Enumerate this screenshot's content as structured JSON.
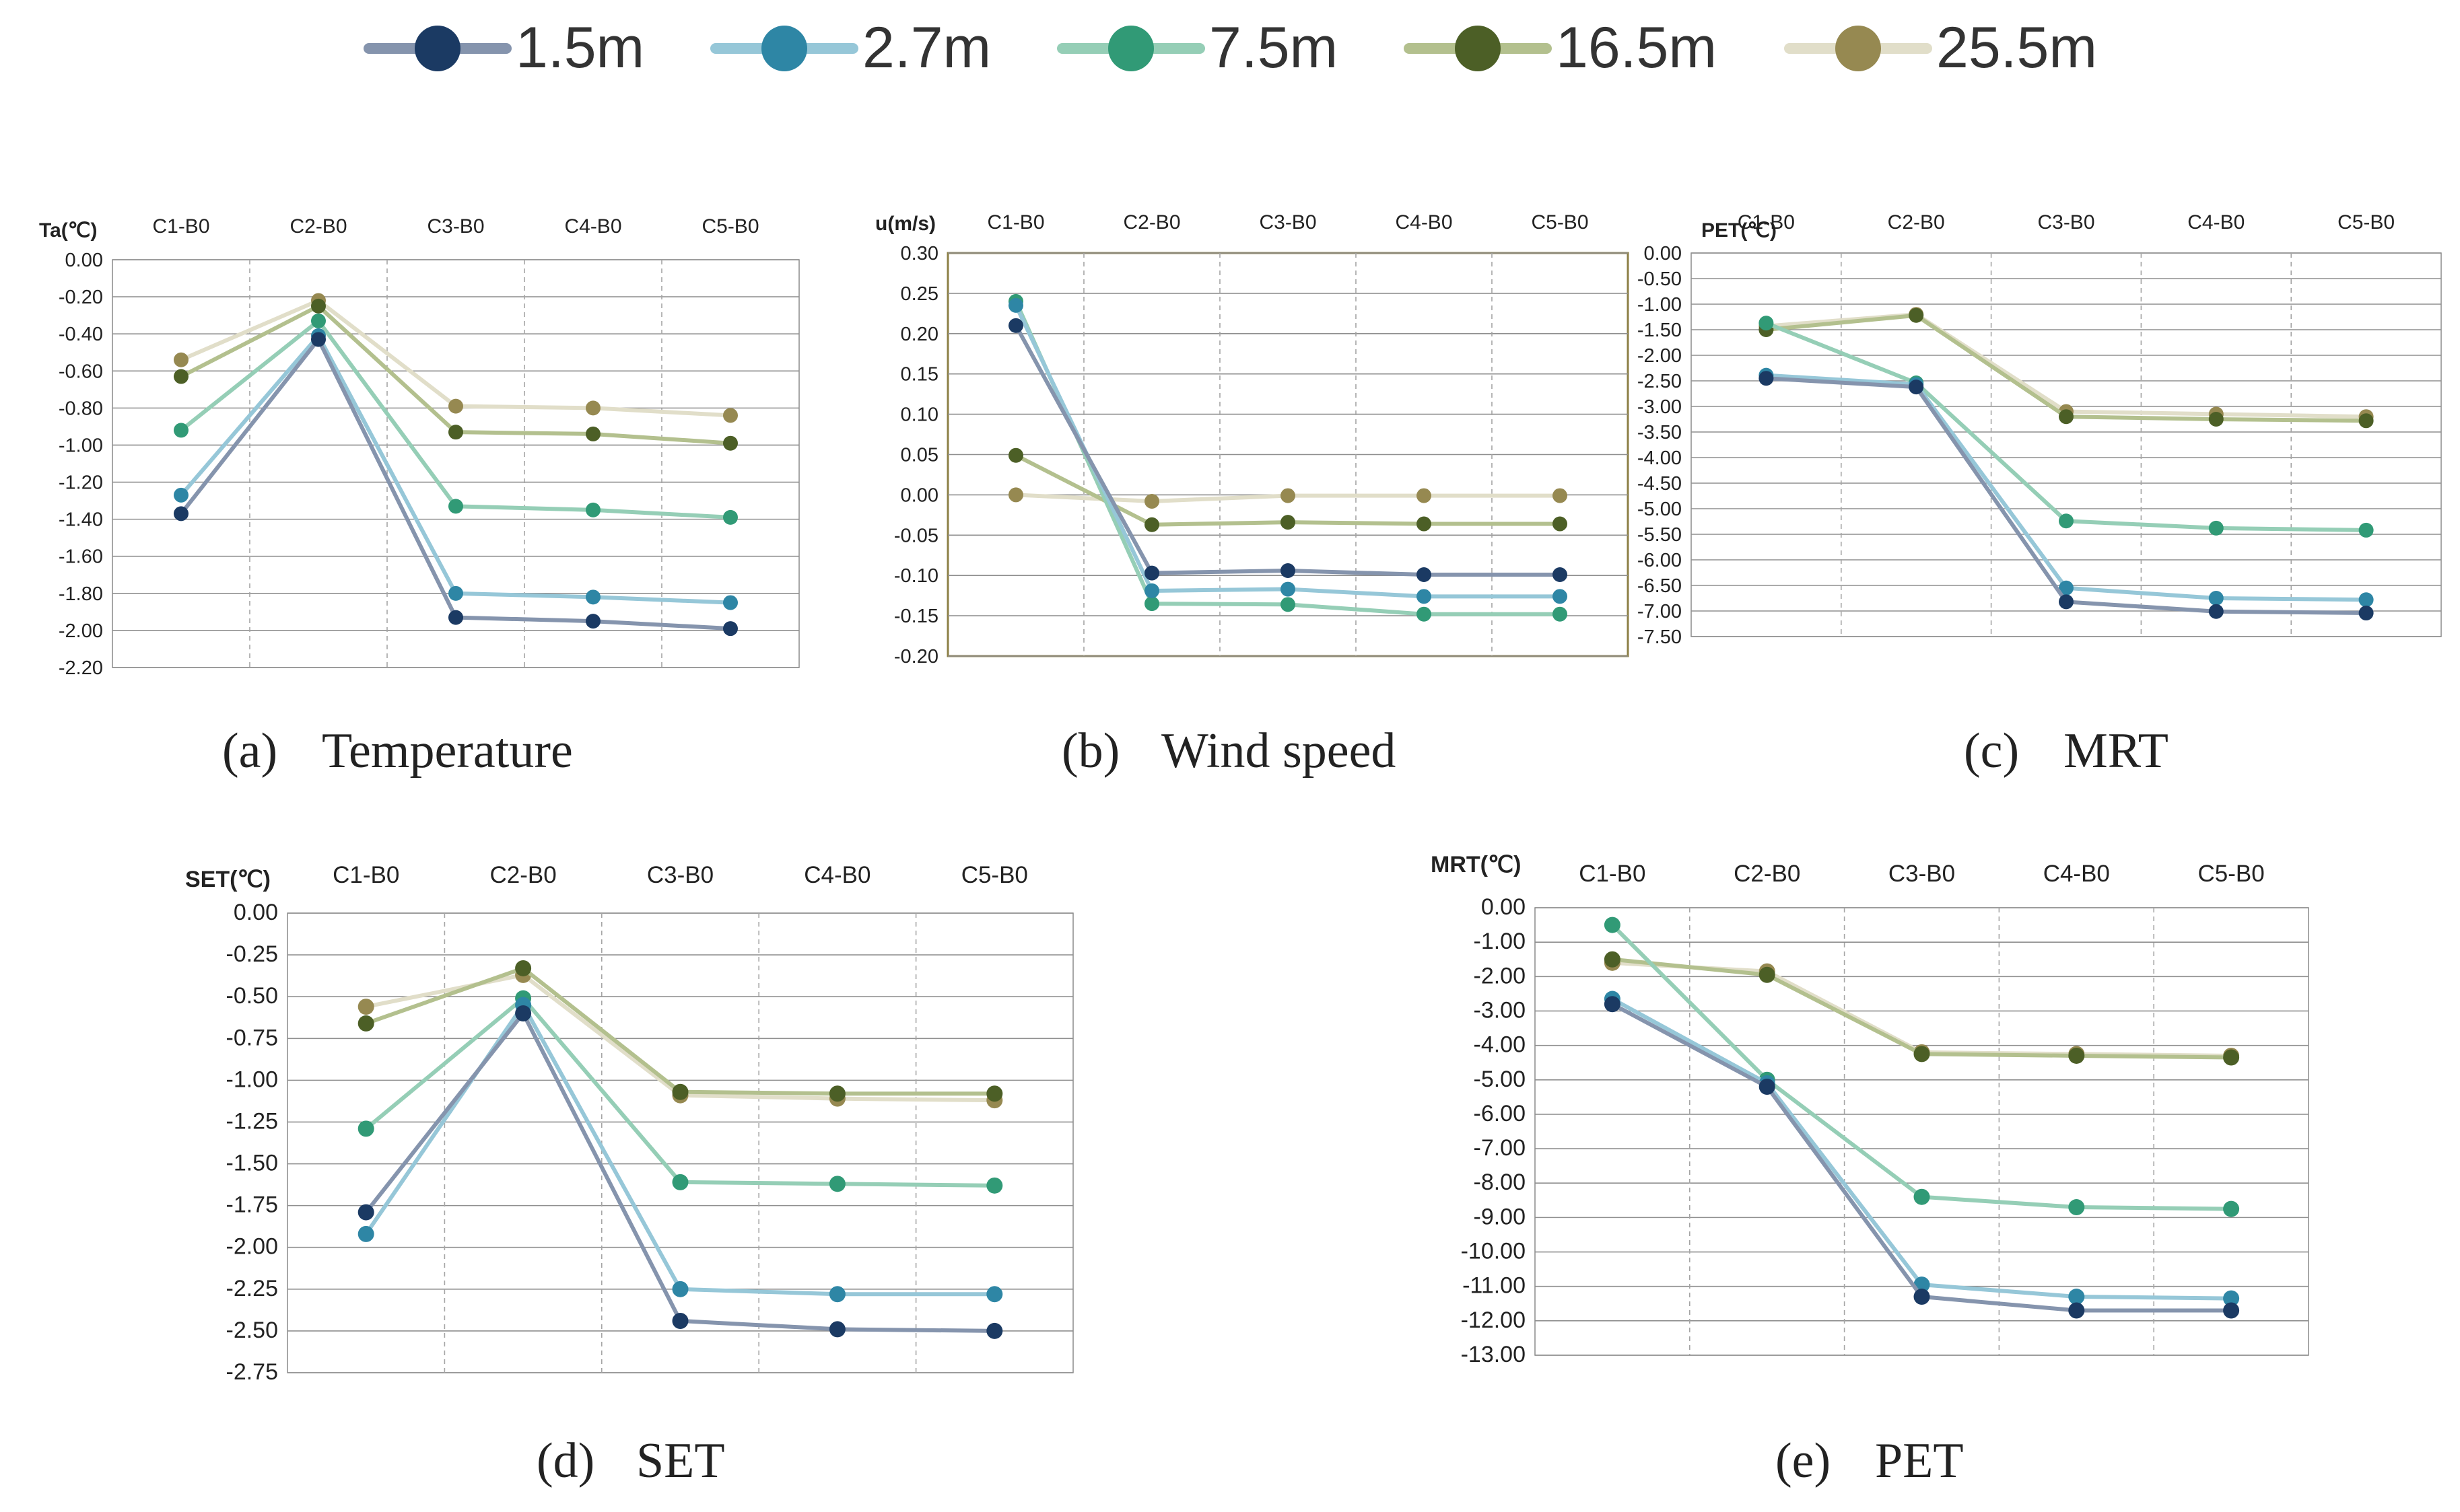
{
  "legend": {
    "items": [
      {
        "label": "1.5m",
        "color": "#1b3a63",
        "line_color": "#8594ad"
      },
      {
        "label": "2.7m",
        "color": "#2e86a5",
        "line_color": "#96c7d8"
      },
      {
        "label": "7.5m",
        "color": "#319a76",
        "line_color": "#95ceb6"
      },
      {
        "label": "16.5m",
        "color": "#4c5f26",
        "line_color": "#b3c08e"
      },
      {
        "label": "25.5m",
        "color": "#968951",
        "line_color": "#e1dec9"
      }
    ]
  },
  "chart_data": [
    {
      "type": "line",
      "title": "Temperature",
      "caption_letter": "(a)",
      "ylabel": "Ta(℃)",
      "categories": [
        "C1-B0",
        "C2-B0",
        "C3-B0",
        "C4-B0",
        "C5-B0"
      ],
      "ylim": [
        -2.2,
        0
      ],
      "yticks": [
        "0.00",
        "-0.20",
        "-0.40",
        "-0.60",
        "-0.80",
        "-1.00",
        "-1.20",
        "-1.40",
        "-1.60",
        "-1.80",
        "-2.00",
        "-2.20"
      ],
      "series": [
        {
          "name": "1.5m",
          "values": [
            -1.37,
            -0.43,
            -1.93,
            -1.95,
            -1.99
          ]
        },
        {
          "name": "2.7m",
          "values": [
            -1.27,
            -0.41,
            -1.8,
            -1.82,
            -1.85
          ]
        },
        {
          "name": "7.5m",
          "values": [
            -0.92,
            -0.33,
            -1.33,
            -1.35,
            -1.39
          ]
        },
        {
          "name": "16.5m",
          "values": [
            -0.63,
            -0.25,
            -0.93,
            -0.94,
            -0.99
          ]
        },
        {
          "name": "25.5m",
          "values": [
            -0.54,
            -0.22,
            -0.79,
            -0.8,
            -0.84
          ]
        }
      ]
    },
    {
      "type": "line",
      "title": "Wind speed",
      "caption_letter": "(b)",
      "ylabel": "u(m/s)",
      "categories": [
        "C1-B0",
        "C2-B0",
        "C3-B0",
        "C4-B0",
        "C5-B0"
      ],
      "ylim": [
        -0.2,
        0.3
      ],
      "yticks": [
        "0.30",
        "0.25",
        "0.20",
        "0.15",
        "0.10",
        "0.05",
        "0.00",
        "-0.05",
        "-0.10",
        "-0.15",
        "-0.20"
      ],
      "series": [
        {
          "name": "1.5m",
          "values": [
            0.21,
            -0.097,
            -0.094,
            -0.099,
            -0.099
          ]
        },
        {
          "name": "2.7m",
          "values": [
            0.235,
            -0.119,
            -0.117,
            -0.126,
            -0.126
          ]
        },
        {
          "name": "7.5m",
          "values": [
            0.24,
            -0.135,
            -0.136,
            -0.148,
            -0.148
          ]
        },
        {
          "name": "16.5m",
          "values": [
            0.049,
            -0.037,
            -0.034,
            -0.036,
            -0.036
          ]
        },
        {
          "name": "25.5m",
          "values": [
            0.0,
            -0.008,
            -0.001,
            -0.001,
            -0.001
          ]
        }
      ]
    },
    {
      "type": "line",
      "title": "MRT",
      "caption_letter": "(c)",
      "ylabel": "PET(℃)",
      "categories": [
        "C1-B0",
        "C2-B0",
        "C3-B0",
        "C4-B0",
        "C5-B0"
      ],
      "ylim": [
        -7.5,
        0
      ],
      "yticks": [
        "0.00",
        "-0.50",
        "-1.00",
        "-1.50",
        "-2.00",
        "-2.50",
        "-3.00",
        "-3.50",
        "-4.00",
        "-4.50",
        "-5.00",
        "-5.50",
        "-6.00",
        "-6.50",
        "-7.00",
        "-7.50"
      ],
      "series": [
        {
          "name": "1.5m",
          "values": [
            -2.45,
            -2.62,
            -6.82,
            -7.01,
            -7.04
          ]
        },
        {
          "name": "2.7m",
          "values": [
            -2.39,
            -2.57,
            -6.55,
            -6.75,
            -6.78
          ]
        },
        {
          "name": "7.5m",
          "values": [
            -1.37,
            -2.54,
            -5.24,
            -5.38,
            -5.42
          ]
        },
        {
          "name": "16.5m",
          "values": [
            -1.5,
            -1.22,
            -3.2,
            -3.25,
            -3.28
          ]
        },
        {
          "name": "25.5m",
          "values": [
            -1.43,
            -1.2,
            -3.1,
            -3.15,
            -3.2
          ]
        }
      ]
    },
    {
      "type": "line",
      "title": "SET",
      "caption_letter": "(d)",
      "ylabel": "SET(℃)",
      "categories": [
        "C1-B0",
        "C2-B0",
        "C3-B0",
        "C4-B0",
        "C5-B0"
      ],
      "ylim": [
        -2.75,
        0
      ],
      "yticks": [
        "0.00",
        "-0.25",
        "-0.50",
        "-0.75",
        "-1.00",
        "-1.25",
        "-1.50",
        "-1.75",
        "-2.00",
        "-2.25",
        "-2.50",
        "-2.75"
      ],
      "series": [
        {
          "name": "1.5m",
          "values": [
            -1.79,
            -0.6,
            -2.44,
            -2.49,
            -2.5
          ]
        },
        {
          "name": "2.7m",
          "values": [
            -1.92,
            -0.55,
            -2.25,
            -2.28,
            -2.28
          ]
        },
        {
          "name": "7.5m",
          "values": [
            -1.29,
            -0.51,
            -1.61,
            -1.62,
            -1.63
          ]
        },
        {
          "name": "16.5m",
          "values": [
            -0.66,
            -0.33,
            -1.07,
            -1.08,
            -1.08
          ]
        },
        {
          "name": "25.5m",
          "values": [
            -0.56,
            -0.37,
            -1.09,
            -1.11,
            -1.12
          ]
        }
      ]
    },
    {
      "type": "line",
      "title": "PET",
      "caption_letter": "(e)",
      "ylabel": "MRT(℃)",
      "categories": [
        "C1-B0",
        "C2-B0",
        "C3-B0",
        "C4-B0",
        "C5-B0"
      ],
      "ylim": [
        -13,
        0
      ],
      "yticks": [
        "0.00",
        "-1.00",
        "-2.00",
        "-3.00",
        "-4.00",
        "-5.00",
        "-6.00",
        "-7.00",
        "-8.00",
        "-9.00",
        "-10.00",
        "-11.00",
        "-12.00",
        "-13.00"
      ],
      "series": [
        {
          "name": "1.5m",
          "values": [
            -2.8,
            -5.2,
            -11.3,
            -11.7,
            -11.7
          ]
        },
        {
          "name": "2.7m",
          "values": [
            -2.65,
            -5.1,
            -10.95,
            -11.3,
            -11.35
          ]
        },
        {
          "name": "7.5m",
          "values": [
            -0.5,
            -5.0,
            -8.4,
            -8.7,
            -8.75
          ]
        },
        {
          "name": "16.5m",
          "values": [
            -1.5,
            -1.95,
            -4.25,
            -4.3,
            -4.35
          ]
        },
        {
          "name": "25.5m",
          "values": [
            -1.6,
            -1.85,
            -4.2,
            -4.25,
            -4.3
          ]
        }
      ]
    }
  ]
}
